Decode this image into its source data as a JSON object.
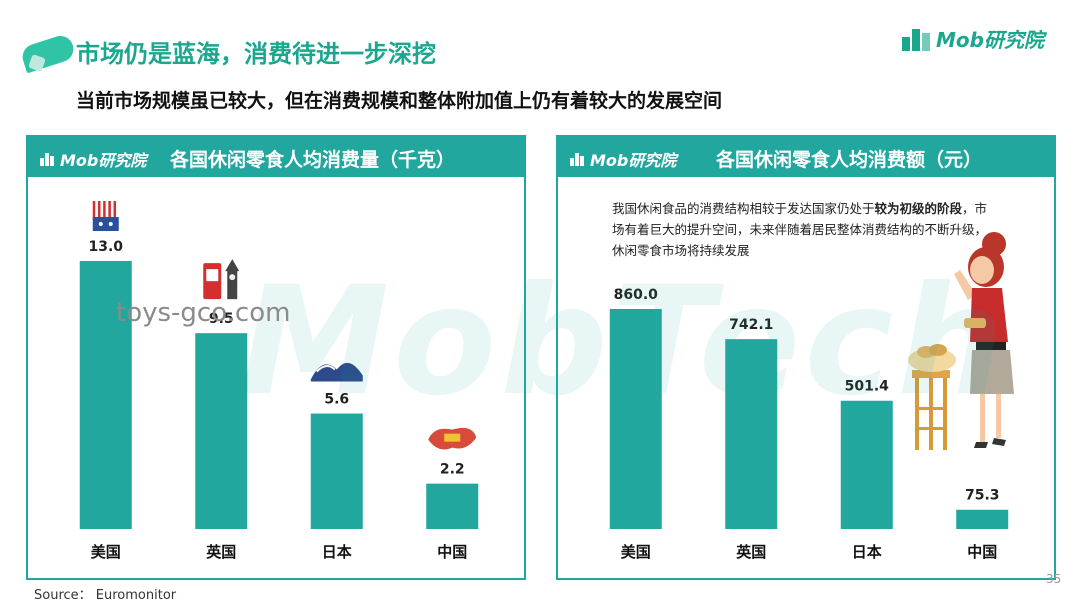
{
  "header": {
    "title": "市场仍是蓝海，消费待进一步深挖",
    "subtitle": "当前市场规模虽已较大，但在消费规模和整体附加值上仍有着较大的发展空间",
    "logo_text": "Mob研究院"
  },
  "panel_logo_text": "Mob研究院",
  "watermark_text": "MobTech",
  "overlay_watermark": "toys-gco.com",
  "note": {
    "part1": "我国休闲食品的消费结构相较于发达国家仍处于",
    "bold": "较为初级的阶段",
    "part2": "，市场有着巨大的提升空间，未来伴随着居民整体消费结构的不断升级，休闲零食市场将持续发展"
  },
  "source": "Source： Euromonitor",
  "page_number": "35",
  "colors": {
    "accent": "#22a79f",
    "title_green": "#1aa78e"
  },
  "chart_data": [
    {
      "type": "bar",
      "title": "各国休闲零食人均消费量（千克）",
      "categories": [
        "美国",
        "英国",
        "日本",
        "中国"
      ],
      "values": [
        13.0,
        9.5,
        5.6,
        2.2
      ],
      "value_labels": [
        "13.0",
        "9.5",
        "5.6",
        "2.2"
      ],
      "icons": [
        "us-flag-icon",
        "london-landmark-icon",
        "wave-icon",
        "china-map-icon"
      ],
      "ylim": [
        0,
        13.0
      ],
      "grid": false,
      "color": "#22a79f"
    },
    {
      "type": "bar",
      "title": "各国休闲零食人均消费额（元）",
      "categories": [
        "美国",
        "英国",
        "日本",
        "中国"
      ],
      "values": [
        860.0,
        742.1,
        501.4,
        75.3
      ],
      "value_labels": [
        "860.0",
        "742.1",
        "501.4",
        "75.3"
      ],
      "ylim": [
        0,
        860.0
      ],
      "grid": false,
      "color": "#22a79f"
    }
  ]
}
